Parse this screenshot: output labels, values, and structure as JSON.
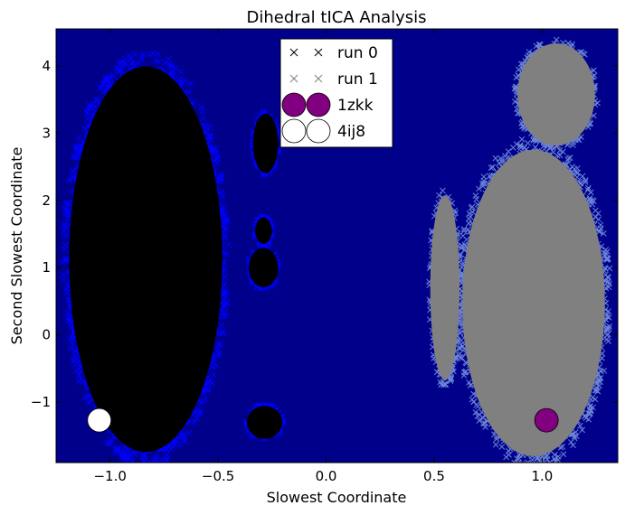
{
  "chart_data": {
    "type": "scatter",
    "title": "Dihedral tICA Analysis",
    "xlabel": "Slowest Coordinate",
    "ylabel": "Second Slowest Coordinate",
    "xlim": [
      -1.25,
      1.35
    ],
    "ylim": [
      -1.9,
      4.55
    ],
    "x_ticks": [
      -1.0,
      -0.5,
      0.0,
      0.5,
      1.0
    ],
    "x_tick_labels": [
      "−1.0",
      "−0.5",
      "0.0",
      "0.5",
      "1.0"
    ],
    "y_ticks": [
      -1,
      0,
      1,
      2,
      3,
      4
    ],
    "y_tick_labels": [
      "−1",
      "0",
      "1",
      "2",
      "3",
      "4"
    ],
    "background_color": "#00008B",
    "grid": false,
    "legend_position": "top-center",
    "series": [
      {
        "name": "run 0",
        "marker": "x",
        "color": "#000000",
        "edge_color": "#0000ff",
        "regions": [
          {
            "x": [
              -1.2,
              -0.47
            ],
            "y": [
              -1.8,
              4.05
            ]
          },
          {
            "x": [
              -0.37,
              -0.2
            ],
            "y": [
              -1.55,
              -1.05
            ]
          },
          {
            "x": [
              -0.36,
              -0.22
            ],
            "y": [
              0.7,
              1.3
            ]
          },
          {
            "x": [
              -0.33,
              -0.25
            ],
            "y": [
              1.35,
              1.75
            ]
          },
          {
            "x": [
              -0.34,
              -0.22
            ],
            "y": [
              2.4,
              3.3
            ]
          }
        ]
      },
      {
        "name": "run 1",
        "marker": "x",
        "color": "#808080",
        "edge_color": "#6b84d6",
        "regions": [
          {
            "x": [
              0.62,
              1.3
            ],
            "y": [
              -1.85,
              2.8
            ]
          },
          {
            "x": [
              0.88,
              1.25
            ],
            "y": [
              2.8,
              4.35
            ]
          },
          {
            "x": [
              0.48,
              0.62
            ],
            "y": [
              -0.7,
              2.1
            ]
          }
        ]
      },
      {
        "name": "1zkk",
        "marker": "circle",
        "color": "#800080",
        "points": [
          {
            "x": 1.02,
            "y": -1.27
          }
        ]
      },
      {
        "name": "4ij8",
        "marker": "circle",
        "color": "#ffffff",
        "points": [
          {
            "x": -1.05,
            "y": -1.27
          }
        ]
      }
    ]
  }
}
